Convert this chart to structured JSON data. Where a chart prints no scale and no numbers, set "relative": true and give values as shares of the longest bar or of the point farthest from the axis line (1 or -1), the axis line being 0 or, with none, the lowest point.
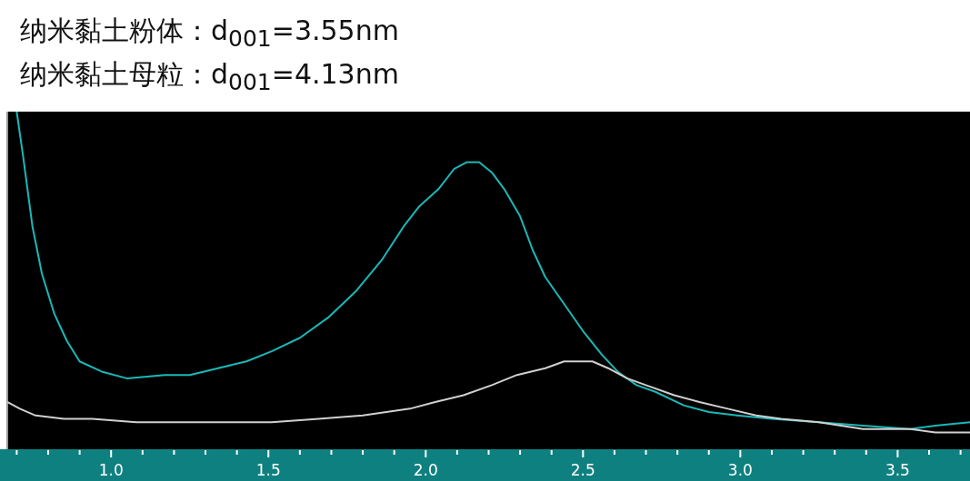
{
  "chart_data": {
    "type": "line",
    "title": "纳米黏土粉体：d$_{001}$=3.55nm",
    "subtitle": "纳米黏土母粒：d$_{001}$=4.13nm",
    "relative": true,
    "xlim": [
      0.67,
      3.73
    ],
    "xticks": [
      {
        "value": 0.7,
        "label": null
      },
      {
        "value": 0.8,
        "label": null
      },
      {
        "value": 0.9,
        "label": null
      },
      {
        "value": 1.0,
        "label": "1.0"
      },
      {
        "value": 1.1,
        "label": null
      },
      {
        "value": 1.2,
        "label": null
      },
      {
        "value": 1.3,
        "label": null
      },
      {
        "value": 1.4,
        "label": null
      },
      1.5,
      {
        "value": 1.6,
        "label": null
      },
      {
        "value": 1.7,
        "label": null
      },
      {
        "value": 1.8,
        "label": null
      },
      {
        "value": 1.9,
        "label": null
      },
      {
        "value": 2.0,
        "label": "2.0"
      },
      {
        "value": 2.1,
        "label": null
      },
      {
        "value": 2.2,
        "label": null
      },
      {
        "value": 2.3,
        "label": null
      },
      {
        "value": 2.4,
        "label": null
      },
      2.5,
      {
        "value": 2.6,
        "label": null
      },
      {
        "value": 2.7,
        "label": null
      },
      {
        "value": 2.8,
        "label": null
      },
      {
        "value": 2.9,
        "label": null
      },
      {
        "value": 3.0,
        "label": "3.0"
      },
      {
        "value": 3.1,
        "label": null
      },
      {
        "value": 3.2,
        "label": null
      },
      {
        "value": 3.3,
        "label": null
      },
      {
        "value": 3.4,
        "label": null
      },
      3.5,
      {
        "value": 3.6,
        "label": null
      },
      {
        "value": 3.7,
        "label": null
      }
    ],
    "series": [
      {
        "color": "#1ab8b8",
        "x": [
          0.7,
          0.72,
          0.75,
          0.78,
          0.82,
          0.86,
          0.9,
          0.97,
          1.05,
          1.17,
          1.25,
          1.34,
          1.43,
          1.51,
          1.6,
          1.69,
          1.78,
          1.86,
          1.93,
          1.98,
          2.04,
          2.09,
          2.13,
          2.17,
          2.21,
          2.25,
          2.3,
          2.34,
          2.38,
          2.44,
          2.5,
          2.56,
          2.61,
          2.67,
          2.73,
          2.82,
          2.9,
          2.99,
          3.1,
          3.25,
          3.39,
          3.54,
          3.62,
          3.73
        ],
        "values": [
          1.0,
          0.87,
          0.66,
          0.52,
          0.4,
          0.32,
          0.26,
          0.23,
          0.21,
          0.22,
          0.22,
          0.24,
          0.26,
          0.29,
          0.33,
          0.39,
          0.47,
          0.56,
          0.66,
          0.72,
          0.77,
          0.83,
          0.85,
          0.85,
          0.82,
          0.77,
          0.69,
          0.59,
          0.51,
          0.43,
          0.35,
          0.28,
          0.23,
          0.19,
          0.17,
          0.13,
          0.11,
          0.1,
          0.09,
          0.08,
          0.07,
          0.06,
          0.07,
          0.08
        ]
      },
      {
        "color": "#d0d0d0",
        "x": [
          0.67,
          0.71,
          0.76,
          0.85,
          0.94,
          1.08,
          1.23,
          1.37,
          1.51,
          1.66,
          1.8,
          1.95,
          2.03,
          2.12,
          2.21,
          2.29,
          2.38,
          2.44,
          2.49,
          2.53,
          2.58,
          2.64,
          2.7,
          2.79,
          2.87,
          2.96,
          3.05,
          3.13,
          3.25,
          3.39,
          3.54,
          3.62,
          3.73
        ],
        "values": [
          0.14,
          0.12,
          0.1,
          0.09,
          0.09,
          0.08,
          0.08,
          0.08,
          0.08,
          0.09,
          0.1,
          0.12,
          0.14,
          0.16,
          0.19,
          0.22,
          0.24,
          0.26,
          0.26,
          0.26,
          0.24,
          0.21,
          0.19,
          0.16,
          0.14,
          0.12,
          0.1,
          0.09,
          0.08,
          0.06,
          0.06,
          0.05,
          0.05
        ]
      }
    ]
  }
}
